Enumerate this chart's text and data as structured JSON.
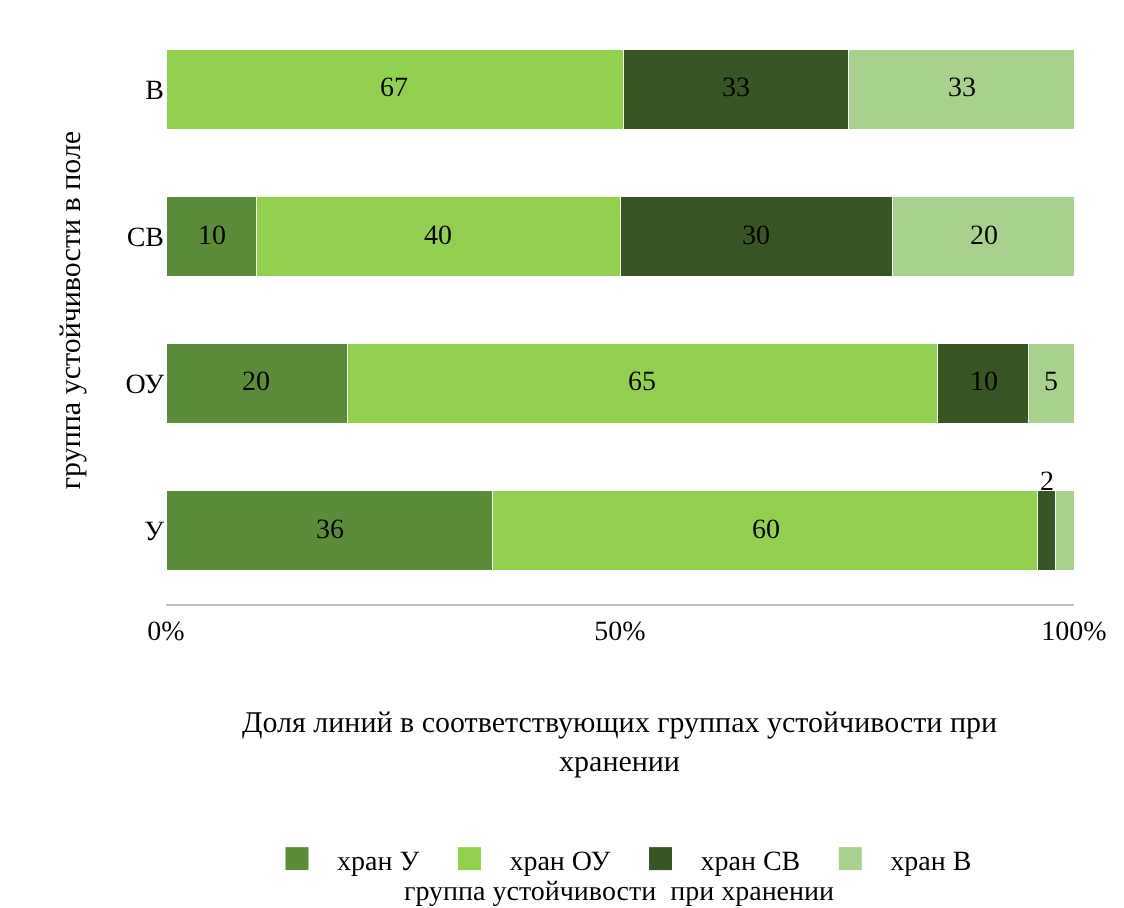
{
  "chart_data": {
    "type": "bar",
    "orientation": "horizontal",
    "stacked": true,
    "categories": [
      "В",
      "СВ",
      "ОУ",
      "У"
    ],
    "series": [
      {
        "name": "хран У",
        "color": "#5b8c3a",
        "values": [
          0,
          10,
          20,
          36
        ],
        "value_labels": [
          null,
          "10",
          "20",
          "36"
        ]
      },
      {
        "name": "хран ОУ",
        "color": "#92d050",
        "values": [
          50.4,
          40,
          65,
          60
        ],
        "value_labels": [
          null,
          "40",
          "65",
          "60"
        ]
      },
      {
        "name": "хран СВ",
        "color": "#375623",
        "values": [
          24.8,
          30,
          10,
          2
        ],
        "value_labels": [
          null,
          "30",
          "10",
          "2"
        ]
      },
      {
        "name": "хран В",
        "color": "#a9d18e",
        "values": [
          24.8,
          20,
          5,
          2
        ],
        "value_labels": [
          null,
          "20",
          "5",
          null
        ]
      }
    ],
    "annotations": [
      "67",
      "33",
      "33"
    ],
    "xlim": [
      0,
      100
    ],
    "xticks": [
      {
        "value": 0,
        "label": "0%"
      },
      {
        "value": 50,
        "label": "50%"
      },
      {
        "value": 100,
        "label": "100%"
      }
    ],
    "xlabel": "Доля линий в соответствующих группах устойчивости при хранении",
    "ylabel": "группа устойчивости в поле",
    "legend": "bottom",
    "legend_title": "группа устойчивости  при хранении"
  }
}
